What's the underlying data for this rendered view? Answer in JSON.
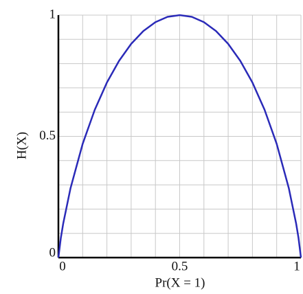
{
  "chart_data": {
    "type": "line",
    "xlabel": "Pr(X = 1)",
    "ylabel": "H(X)",
    "x": [
      0,
      0.01,
      0.02,
      0.05,
      0.1,
      0.15,
      0.2,
      0.25,
      0.3,
      0.35,
      0.4,
      0.45,
      0.5,
      0.55,
      0.6,
      0.65,
      0.7,
      0.75,
      0.8,
      0.85,
      0.9,
      0.95,
      0.98,
      0.99,
      1
    ],
    "series": [
      {
        "color": "#2a2ab8",
        "values": [
          0,
          0.0808,
          0.1414,
          0.2864,
          0.469,
          0.6098,
          0.7219,
          0.8113,
          0.8813,
          0.9341,
          0.971,
          0.9928,
          1,
          0.9928,
          0.971,
          0.9341,
          0.8813,
          0.8113,
          0.7219,
          0.6098,
          0.469,
          0.2864,
          0.1414,
          0.0808,
          0
        ]
      }
    ],
    "xlim": [
      0,
      1
    ],
    "ylim": [
      0,
      1
    ],
    "xticks": [
      0,
      0.5,
      1
    ],
    "yticks": [
      0,
      0.5,
      1
    ],
    "minor_xticks": [
      0.1,
      0.2,
      0.3,
      0.4,
      0.6,
      0.7,
      0.8,
      0.9
    ],
    "minor_yticks": [
      0.1,
      0.2,
      0.3,
      0.4,
      0.6,
      0.7,
      0.8,
      0.9
    ],
    "grid": true
  }
}
